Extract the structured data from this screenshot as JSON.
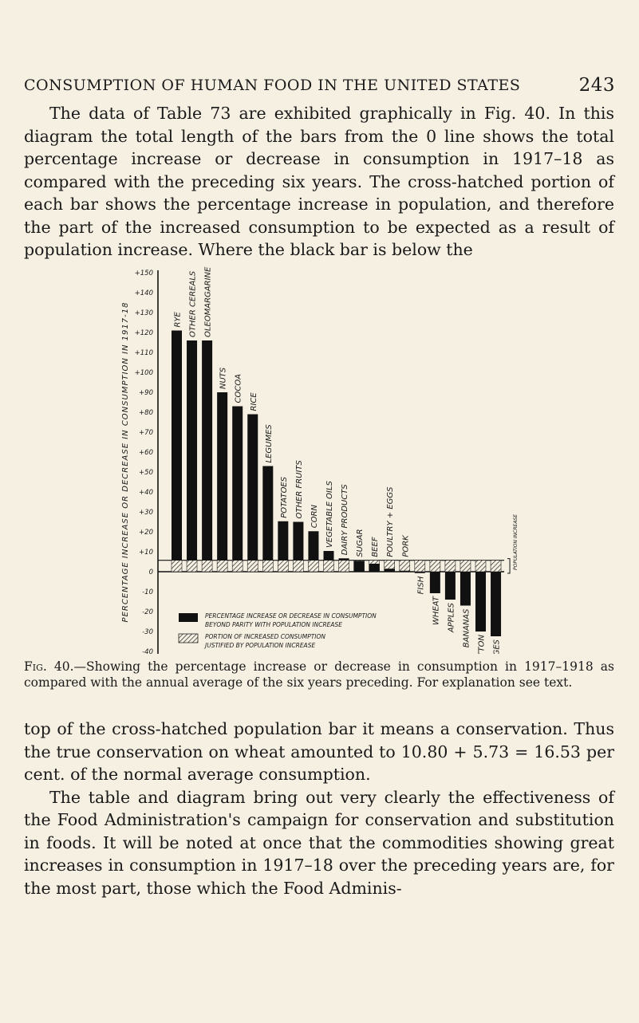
{
  "header": {
    "title": "CONSUMPTION OF HUMAN FOOD IN THE UNITED STATES",
    "page_number": "243"
  },
  "paragraph1": "The data of Table 73 are exhibited graphically in Fig. 40. In this diagram the total length of the bars from the 0 line shows the total percentage increase or decrease in consumption in 1917–18 as compared with the preceding six years. The cross-hatched portion of each bar shows the percentage increase in population, and therefore the part of the increased consumption to be expected as a result of population increase. Where the black bar is below the",
  "caption": {
    "label": "Fig. 40.",
    "text": "—Showing the percentage increase or decrease in consumption in 1917–1918 as compared with the annual average of the six years preceding. For explanation see text."
  },
  "paragraph2": "top of the cross-hatched population bar it means a conservation. Thus the true conservation on wheat amounted to 10.80 + 5.73 = 16.53 per cent. of the normal average consumption.",
  "paragraph3": "The table and diagram bring out very clearly the effectiveness of the Food Administration's campaign for conservation and substitution in foods. It will be noted at once that the commodities showing great increases in consumption in 1917–18 over the preceding years are, for the most part, those which the Food Adminis-",
  "chart_data": {
    "type": "bar",
    "ylabel": "PERCENTAGE INCREASE OR DECREASE IN CONSUMPTION IN 1917-18",
    "ylim": [
      -40,
      150
    ],
    "yticks": [
      "+150",
      "+140",
      "+130",
      "+120",
      "+110",
      "+100",
      "+90",
      "+80",
      "+70",
      "+60",
      "+50",
      "+40",
      "+30",
      "+20",
      "+10",
      "0",
      "-10",
      "-20",
      "-30",
      "-40"
    ],
    "categories": [
      "RYE",
      "OTHER CEREALS",
      "OLEOMARGARINE",
      "NUTS",
      "COCOA",
      "RICE",
      "LEGUMES",
      "POTATOES",
      "OTHER FRUITS",
      "CORN",
      "VEGETABLE OILS",
      "DAIRY PRODUCTS",
      "SUGAR",
      "BEEF",
      "POULTRY + EGGS",
      "PORK",
      "FISH",
      "WHEAT",
      "APPLES",
      "BANANAS",
      "MUTTON",
      "ORANGES"
    ],
    "values": [
      121,
      116,
      116,
      90,
      83,
      79,
      53,
      25.3,
      25,
      20.3,
      10.4,
      6.7,
      5.5,
      4,
      1.5,
      0.5,
      -0.7,
      -10.8,
      -14,
      -17,
      -30,
      -32.4
    ],
    "population_increase": 5.73,
    "population_label": "POPULATION INCREASE",
    "legend": [
      {
        "swatch": "solid-black",
        "text": "PERCENTAGE INCREASE OR DECREASE IN CONSUMPTION",
        "text2": "BEYOND PARITY WITH POPULATION INCREASE"
      },
      {
        "swatch": "cross-hatched",
        "text": "PORTION OF INCREASED CONSUMPTION",
        "text2": "JUSTIFIED BY POPULATION INCREASE"
      }
    ],
    "colors": {
      "bar": "#111111",
      "paper": "#f6f0e2"
    }
  }
}
